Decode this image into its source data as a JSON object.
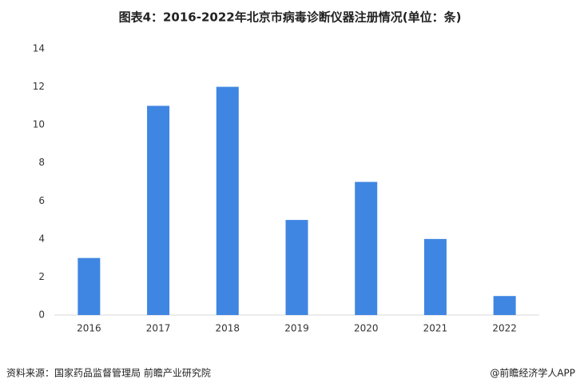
{
  "chart_data": {
    "type": "bar",
    "title": "图表4：2016-2022年北京市病毒诊断仪器注册情况(单位：条)",
    "categories": [
      "2016",
      "2017",
      "2018",
      "2019",
      "2020",
      "2021",
      "2022"
    ],
    "values": [
      3,
      11,
      12,
      5,
      7,
      4,
      1
    ],
    "color": "#3f86e2",
    "ylim": [
      0,
      14
    ],
    "yticks": [
      0,
      2,
      4,
      6,
      8,
      10,
      12,
      14
    ],
    "grid": false,
    "source": "资料来源：国家药品监督管理局 前瞻产业研究院",
    "credit": "@前瞻经济学人APP"
  }
}
